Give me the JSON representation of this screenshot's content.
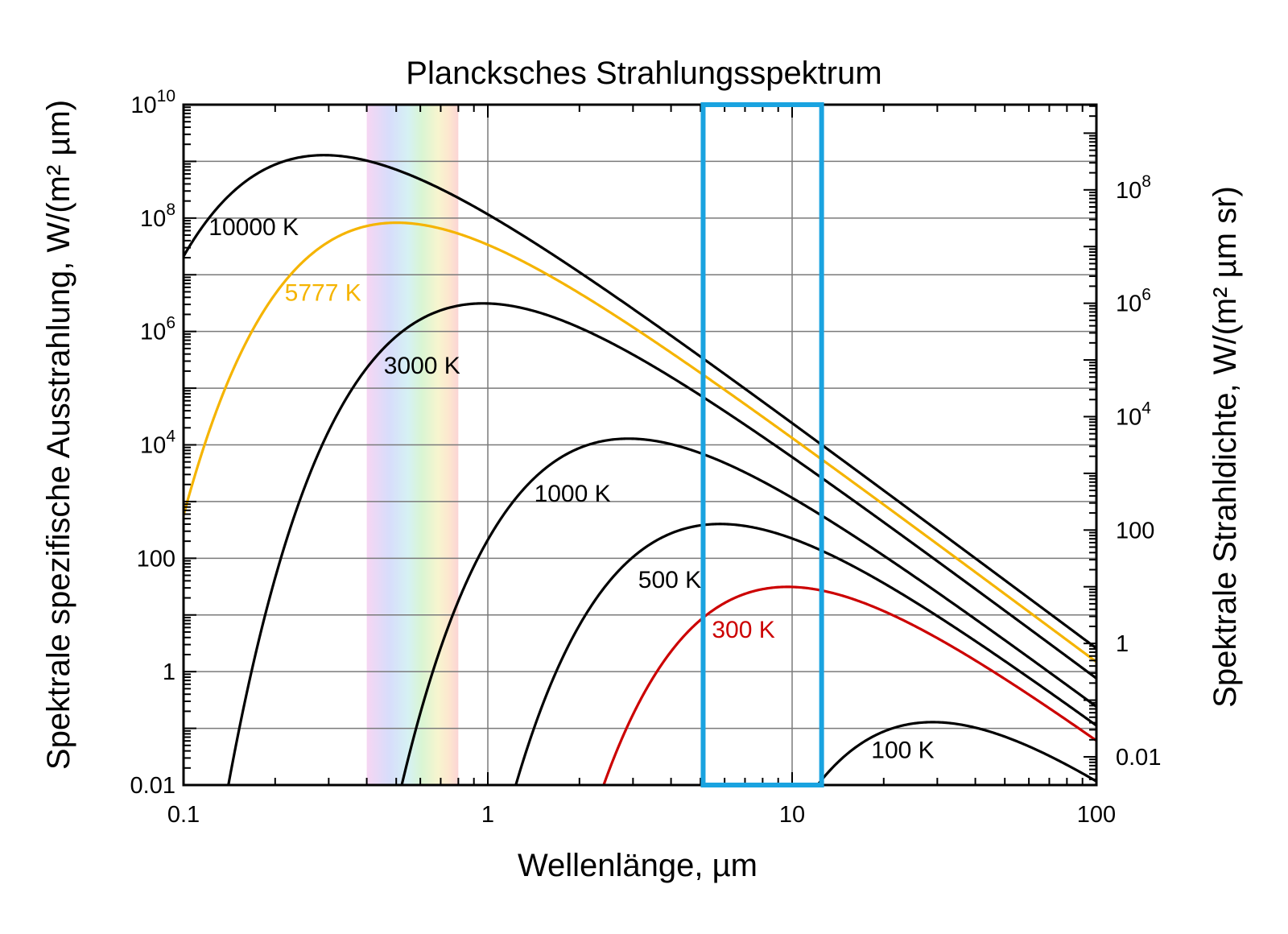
{
  "chart_data": {
    "type": "line",
    "title": "Planck­sches Strahlungsspektrum",
    "xlabel": "Wellenlänge, µm",
    "ylabel_left": "Spektrale spezifische Ausstrahlung, W/(m² µm)",
    "ylabel_right": "Spektrale Strahldichte, W/(m² µm sr)",
    "x_scale": "log",
    "y_scale": "log",
    "xlim": [
      0.1,
      100
    ],
    "ylim_left": [
      0.01,
      10000000000
    ],
    "ylim_right": [
      0.00318,
      3180000000
    ],
    "grid": true,
    "x_ticks": [
      {
        "value": 0.1,
        "label": "0.1"
      },
      {
        "value": 1,
        "label": "1"
      },
      {
        "value": 10,
        "label": "10"
      },
      {
        "value": 100,
        "label": "100"
      }
    ],
    "y_ticks_left": [
      {
        "value": 0.01,
        "base": "0.01",
        "exp": ""
      },
      {
        "value": 1,
        "base": "1",
        "exp": ""
      },
      {
        "value": 100,
        "base": "100",
        "exp": ""
      },
      {
        "value": 10000,
        "base": "10",
        "exp": "4"
      },
      {
        "value": 1000000,
        "base": "10",
        "exp": "6"
      },
      {
        "value": 100000000,
        "base": "10",
        "exp": "8"
      },
      {
        "value": 10000000000,
        "base": "10",
        "exp": "10"
      }
    ],
    "y_ticks_right": [
      {
        "value": 0.01,
        "base": "0.01",
        "exp": ""
      },
      {
        "value": 1,
        "base": "1",
        "exp": ""
      },
      {
        "value": 100,
        "base": "100",
        "exp": ""
      },
      {
        "value": 10000,
        "base": "10",
        "exp": "4"
      },
      {
        "value": 1000000,
        "base": "10",
        "exp": "6"
      },
      {
        "value": 100000000,
        "base": "10",
        "exp": "8"
      }
    ],
    "visible_band": {
      "from": 0.4,
      "to": 0.8
    },
    "highlight_box": {
      "from": 5.1,
      "to": 12.5,
      "color": "#1aa3e0"
    },
    "series": [
      {
        "name": "10000 K",
        "temperature": 10000,
        "color": "#000000",
        "label_at": [
          0.121,
          50000000
        ]
      },
      {
        "name": "5777 K",
        "temperature": 5777,
        "color": "#f5b400",
        "label_at": [
          0.215,
          3500000
        ]
      },
      {
        "name": "3000 K",
        "temperature": 3000,
        "color": "#000000",
        "label_at": [
          0.455,
          180000
        ]
      },
      {
        "name": "1000 K",
        "temperature": 1000,
        "color": "#000000",
        "label_at": [
          1.42,
          1000
        ]
      },
      {
        "name": "500 K",
        "temperature": 500,
        "color": "#000000",
        "label_at": [
          3.12,
          30
        ]
      },
      {
        "name": "300 K",
        "temperature": 300,
        "color": "#cc0000",
        "label_at": [
          5.45,
          4
        ]
      },
      {
        "name": "100 K",
        "temperature": 100,
        "color": "#000000",
        "label_at": [
          18.2,
          0.03
        ]
      }
    ]
  }
}
